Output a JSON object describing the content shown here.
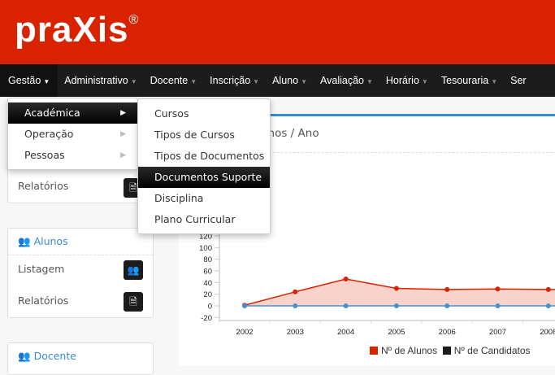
{
  "header": {
    "logo": "praXis",
    "logo_mark": "®"
  },
  "nav": [
    "Gestão",
    "Administrativo",
    "Docente",
    "Inscrição",
    "Aluno",
    "Avaliação",
    "Horário",
    "Tesouraria",
    "Ser"
  ],
  "menu": {
    "items": [
      "Académica",
      "Operação",
      "Pessoas"
    ],
    "selected": "Académica"
  },
  "submenu": {
    "items": [
      "Cursos",
      "Tipos de Cursos",
      "Tipos de Documentos",
      "Documentos Suporte",
      "Disciplina",
      "Plano Curricular"
    ],
    "selected": "Documentos Suporte"
  },
  "sidebar": {
    "panel1": {
      "items": [
        {
          "label": "Relatórios",
          "icon": "file-icon"
        }
      ]
    },
    "alunos": {
      "title": "Alunos",
      "items": [
        {
          "label": "Listagem",
          "icon": "users-icon"
        },
        {
          "label": "Relatórios",
          "icon": "file-icon"
        }
      ]
    },
    "docente": {
      "title": "Docente"
    }
  },
  "main": {
    "title": "Alunos / Ano"
  },
  "colors": {
    "brand": "#d92200",
    "nav": "#1c1c1c",
    "accent": "#3a8ad0"
  },
  "chart_data": {
    "type": "area",
    "x": [
      "2002",
      "2003",
      "2004",
      "2005",
      "2006",
      "2007",
      "2008"
    ],
    "series": [
      {
        "name": "Nº de Alunos",
        "values": [
          1,
          24,
          46,
          30,
          28,
          29,
          28
        ],
        "color": "#d92200"
      },
      {
        "name": "Nº de Candidatos",
        "values": [
          0,
          0,
          0,
          0,
          0,
          0,
          0
        ],
        "color": "#1c1c1c",
        "line_color": "#4a90c8"
      }
    ],
    "yticks": [
      -20,
      0,
      20,
      40,
      60,
      80,
      100,
      120
    ],
    "ylim": [
      -20,
      120
    ],
    "legend": "bottom-right"
  }
}
